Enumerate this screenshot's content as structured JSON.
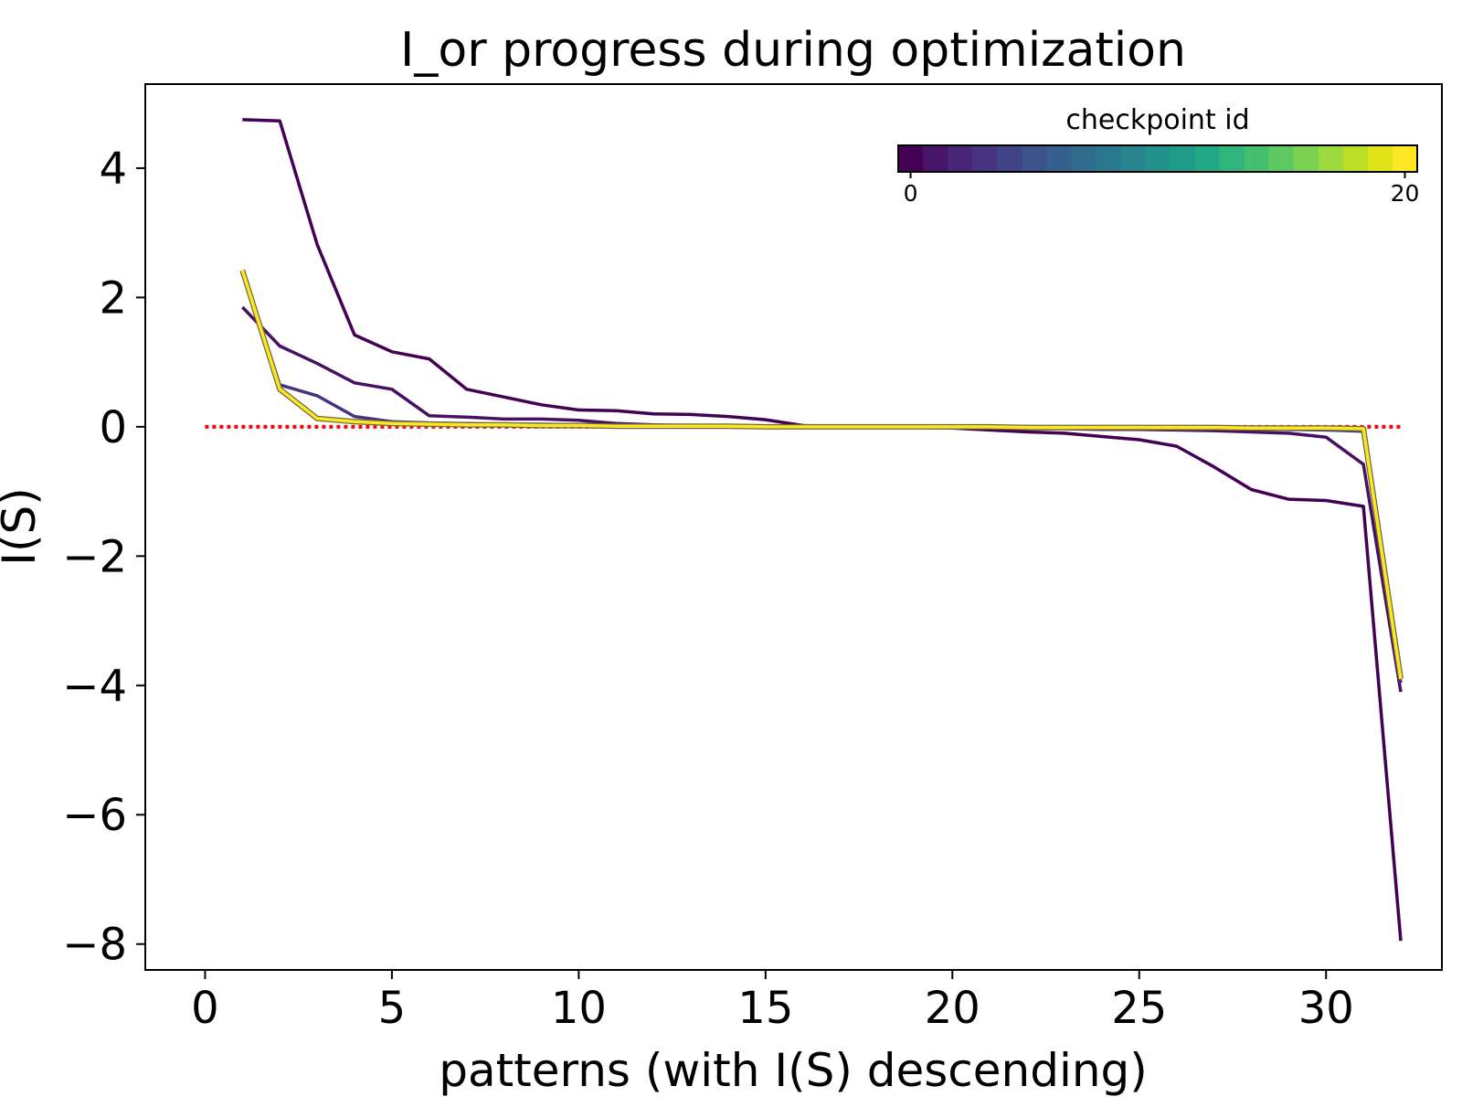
{
  "chart_data": {
    "type": "line",
    "title": "I_or progress during optimization",
    "xlabel": "patterns (with I(S) descending)",
    "ylabel": "I(S)",
    "xlim": [
      -1.6,
      33.1
    ],
    "ylim": [
      -8.4,
      5.3
    ],
    "xticks": [
      0,
      5,
      10,
      15,
      20,
      25,
      30
    ],
    "yticks": [
      4,
      2,
      0,
      -2,
      -4,
      -6,
      -8
    ],
    "xtick_labels": [
      "0",
      "5",
      "10",
      "15",
      "20",
      "25",
      "30"
    ],
    "ytick_labels": [
      "4",
      "2",
      "0",
      "−2",
      "−4",
      "−6",
      "−8"
    ],
    "grid": false,
    "reference_line": {
      "y": 0,
      "x_range": [
        0,
        32
      ],
      "color": "#ff0000",
      "style": "dotted"
    },
    "colorbar": {
      "label": "checkpoint id",
      "min": 0,
      "max": 20,
      "tick_values": [
        0,
        20
      ],
      "tick_labels": [
        "0",
        "20"
      ],
      "placement": "top-right",
      "colormap": "viridis",
      "colors": [
        "#440154",
        "#481467",
        "#482576",
        "#463480",
        "#414487",
        "#3b528b",
        "#355f8d",
        "#2f6c8e",
        "#2a788e",
        "#25848e",
        "#21918c",
        "#1e9c89",
        "#22a884",
        "#2fb47c",
        "#44bf70",
        "#5ec962",
        "#7ad151",
        "#9bd93c",
        "#bddf26",
        "#dfe318",
        "#fde725"
      ]
    },
    "x": [
      1,
      2,
      3,
      4,
      5,
      6,
      7,
      8,
      9,
      10,
      11,
      12,
      13,
      14,
      15,
      16,
      17,
      18,
      19,
      20,
      21,
      22,
      23,
      24,
      25,
      26,
      27,
      28,
      29,
      30,
      31,
      32
    ],
    "series": [
      {
        "color": "#440154",
        "values": [
          4.75,
          4.73,
          2.82,
          1.42,
          1.16,
          1.05,
          0.58,
          0.46,
          0.34,
          0.26,
          0.25,
          0.2,
          0.19,
          0.16,
          0.11,
          0.02,
          0.0,
          0.0,
          -0.01,
          -0.02,
          -0.05,
          -0.08,
          -0.1,
          -0.15,
          -0.2,
          -0.3,
          -0.62,
          -0.97,
          -1.12,
          -1.14,
          -1.23,
          -7.95
        ]
      },
      {
        "color": "#471063",
        "values": [
          1.85,
          1.25,
          0.98,
          0.68,
          0.58,
          0.17,
          0.15,
          0.12,
          0.12,
          0.1,
          0.05,
          0.03,
          0.02,
          0.02,
          0.01,
          0.0,
          0.0,
          0.0,
          -0.01,
          -0.01,
          -0.02,
          -0.03,
          -0.03,
          -0.04,
          -0.04,
          -0.05,
          -0.06,
          -0.08,
          -0.1,
          -0.16,
          -0.58,
          -4.1
        ]
      },
      {
        "color": "#46327e",
        "values": [
          2.42,
          0.65,
          0.48,
          0.16,
          0.08,
          0.06,
          0.05,
          0.04,
          0.04,
          0.03,
          0.03,
          0.02,
          0.02,
          0.01,
          0.01,
          0.0,
          0.0,
          0.0,
          0.0,
          -0.01,
          -0.01,
          -0.01,
          -0.02,
          -0.02,
          -0.02,
          -0.03,
          -0.03,
          -0.03,
          -0.04,
          -0.05,
          -0.07,
          -3.96
        ]
      },
      {
        "color": "#fde725",
        "values": [
          2.42,
          0.58,
          0.13,
          0.08,
          0.05,
          0.04,
          0.03,
          0.03,
          0.02,
          0.02,
          0.01,
          0.01,
          0.01,
          0.01,
          0.0,
          0.0,
          0.0,
          0.0,
          0.0,
          0.0,
          0.0,
          -0.01,
          -0.01,
          -0.01,
          -0.01,
          -0.01,
          -0.01,
          -0.02,
          -0.02,
          -0.02,
          -0.03,
          -3.9
        ]
      }
    ]
  }
}
